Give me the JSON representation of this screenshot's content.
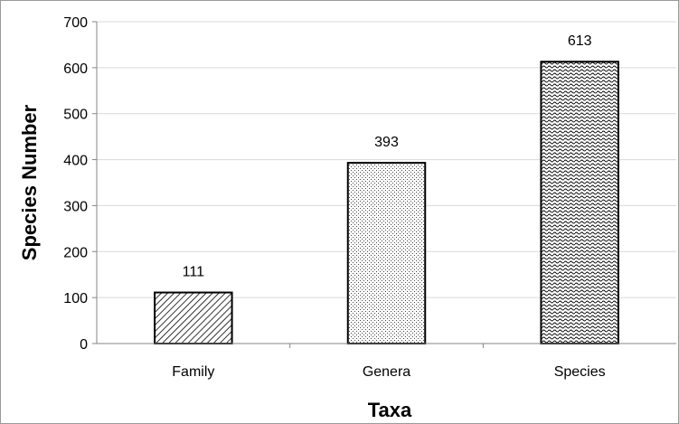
{
  "chart_data": {
    "type": "bar",
    "title": "",
    "xlabel": "Taxa",
    "ylabel": "Species Number",
    "categories": [
      "Family",
      "Genera",
      "Species"
    ],
    "values": [
      111,
      393,
      613
    ],
    "data_labels": [
      "111",
      "393",
      "613"
    ],
    "ylim": [
      0,
      700
    ],
    "yticks": [
      0,
      100,
      200,
      300,
      400,
      500,
      600,
      700
    ],
    "ytick_labels": [
      "0",
      "100",
      "200",
      "300",
      "400",
      "500",
      "600",
      "700"
    ],
    "grid": true,
    "legend": "none",
    "bar_patterns": [
      "diagonal-hatch",
      "fine-dots",
      "dense-waves"
    ],
    "colors": {
      "bar_outline": "#000000",
      "gridline": "#d9d9d9",
      "axis": "#868686",
      "frame": "#9a9a9a"
    }
  }
}
